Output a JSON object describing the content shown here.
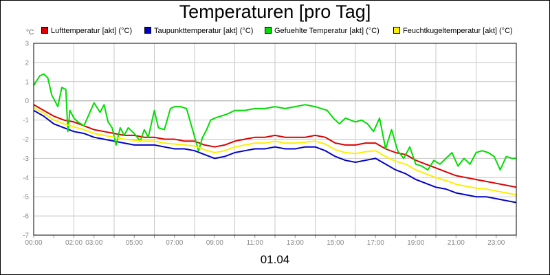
{
  "chart_data": {
    "type": "line",
    "title": "Temperaturen [pro Tag]",
    "unit_label": "°C",
    "xlabel": "01.04",
    "ylim": [
      -7,
      3
    ],
    "y_ticks": [
      "3",
      "2",
      "1",
      "0",
      "-1",
      "-2",
      "-3",
      "-4",
      "-5",
      "-6",
      "-7"
    ],
    "x_range_hours": [
      0,
      24
    ],
    "x_ticks": [
      {
        "h": 0,
        "label": "00:00"
      },
      {
        "h": 2,
        "label": "02:00"
      },
      {
        "h": 3,
        "label": "03:00"
      },
      {
        "h": 5,
        "label": "05:00"
      },
      {
        "h": 7,
        "label": "07:00"
      },
      {
        "h": 9,
        "label": "09:00"
      },
      {
        "h": 11,
        "label": "11:00"
      },
      {
        "h": 13,
        "label": "13:00"
      },
      {
        "h": 15,
        "label": "15:00"
      },
      {
        "h": 17,
        "label": "17:00"
      },
      {
        "h": 19,
        "label": "19:00"
      },
      {
        "h": 21,
        "label": "21:00"
      },
      {
        "h": 23,
        "label": "23:00"
      }
    ],
    "grid": true,
    "legend_position": "top",
    "series": [
      {
        "name": "Lufttemperatur [akt] (°C)",
        "color": "#dd0000",
        "x": [
          0,
          0.5,
          1,
          1.5,
          2,
          2.5,
          3,
          3.5,
          4,
          4.5,
          5,
          5.5,
          6,
          6.5,
          7,
          7.5,
          8,
          8.5,
          9,
          9.5,
          10,
          10.5,
          11,
          11.5,
          12,
          12.5,
          13,
          13.5,
          14,
          14.5,
          15,
          15.5,
          16,
          16.5,
          17,
          17.5,
          18,
          18.5,
          19,
          19.5,
          20,
          20.5,
          21,
          21.5,
          22,
          22.5,
          23,
          23.5,
          24
        ],
        "y": [
          -0.2,
          -0.5,
          -0.8,
          -1.0,
          -1.1,
          -1.3,
          -1.5,
          -1.6,
          -1.7,
          -1.8,
          -1.8,
          -1.9,
          -1.9,
          -2.0,
          -2.0,
          -2.1,
          -2.1,
          -2.3,
          -2.4,
          -2.3,
          -2.1,
          -2.0,
          -1.9,
          -1.9,
          -1.8,
          -1.9,
          -1.9,
          -1.9,
          -1.8,
          -1.9,
          -2.2,
          -2.3,
          -2.3,
          -2.2,
          -2.2,
          -2.5,
          -2.7,
          -2.8,
          -3.1,
          -3.3,
          -3.5,
          -3.7,
          -3.9,
          -4.0,
          -4.1,
          -4.2,
          -4.3,
          -4.4,
          -4.5
        ]
      },
      {
        "name": "Taupunkttemperatur [akt] (°C)",
        "color": "#0000cc",
        "x": [
          0,
          0.5,
          1,
          1.5,
          2,
          2.5,
          3,
          3.5,
          4,
          4.5,
          5,
          5.5,
          6,
          6.5,
          7,
          7.5,
          8,
          8.5,
          9,
          9.5,
          10,
          10.5,
          11,
          11.5,
          12,
          12.5,
          13,
          13.5,
          14,
          14.5,
          15,
          15.5,
          16,
          16.5,
          17,
          17.5,
          18,
          18.5,
          19,
          19.5,
          20,
          20.5,
          21,
          21.5,
          22,
          22.5,
          23,
          23.5,
          24
        ],
        "y": [
          -0.5,
          -0.8,
          -1.2,
          -1.4,
          -1.6,
          -1.7,
          -1.9,
          -2.0,
          -2.1,
          -2.2,
          -2.3,
          -2.3,
          -2.3,
          -2.4,
          -2.5,
          -2.5,
          -2.6,
          -2.8,
          -3.0,
          -2.9,
          -2.7,
          -2.6,
          -2.5,
          -2.5,
          -2.4,
          -2.5,
          -2.5,
          -2.4,
          -2.4,
          -2.6,
          -2.9,
          -3.1,
          -3.2,
          -3.1,
          -3.0,
          -3.3,
          -3.6,
          -3.8,
          -4.1,
          -4.3,
          -4.5,
          -4.6,
          -4.8,
          -4.9,
          -5.0,
          -5.0,
          -5.1,
          -5.2,
          -5.3
        ]
      },
      {
        "name": "Gefuehlte Temperatur [akt] (°C)",
        "color": "#00dd00",
        "x": [
          0,
          0.3,
          0.5,
          0.7,
          0.9,
          1.0,
          1.2,
          1.4,
          1.6,
          1.7,
          1.8,
          2.0,
          2.2,
          2.5,
          3.0,
          3.3,
          3.5,
          3.7,
          3.9,
          4.1,
          4.3,
          4.5,
          4.7,
          5.0,
          5.3,
          5.5,
          5.7,
          6.0,
          6.2,
          6.5,
          6.8,
          7.0,
          7.3,
          7.6,
          7.9,
          8.2,
          8.4,
          8.6,
          8.8,
          9.0,
          9.3,
          9.6,
          10.0,
          10.5,
          11.0,
          11.5,
          12.0,
          12.5,
          13.0,
          13.5,
          14.0,
          14.3,
          14.6,
          14.9,
          15.2,
          15.5,
          16.0,
          16.3,
          16.6,
          16.9,
          17.2,
          17.5,
          17.8,
          18.1,
          18.4,
          18.7,
          19.0,
          19.3,
          19.6,
          19.9,
          20.2,
          20.5,
          20.8,
          21.1,
          21.4,
          21.7,
          22.0,
          22.3,
          22.6,
          22.9,
          23.2,
          23.5,
          23.8,
          24.0
        ],
        "y": [
          0.8,
          1.3,
          1.4,
          1.2,
          0.3,
          0.1,
          -0.3,
          0.7,
          0.6,
          -1.6,
          -0.5,
          -0.9,
          -1.1,
          -1.3,
          -0.1,
          -0.6,
          -0.2,
          -1.1,
          -1.4,
          -2.3,
          -1.4,
          -1.8,
          -1.4,
          -1.7,
          -2.1,
          -1.5,
          -1.9,
          -0.5,
          -1.4,
          -1.5,
          -0.4,
          -0.3,
          -0.3,
          -0.4,
          -1.5,
          -2.6,
          -1.9,
          -1.5,
          -1.0,
          -0.9,
          -0.8,
          -0.7,
          -0.5,
          -0.5,
          -0.4,
          -0.4,
          -0.3,
          -0.4,
          -0.3,
          -0.2,
          -0.3,
          -0.4,
          -0.5,
          -0.9,
          -1.2,
          -0.9,
          -1.1,
          -1.0,
          -1.2,
          -1.6,
          -0.9,
          -2.5,
          -1.5,
          -2.6,
          -3.0,
          -2.4,
          -3.3,
          -3.4,
          -3.6,
          -3.1,
          -3.3,
          -3.0,
          -2.7,
          -3.4,
          -3.0,
          -3.3,
          -2.7,
          -2.6,
          -2.7,
          -2.9,
          -3.6,
          -2.9,
          -3.0,
          -3.0
        ]
      },
      {
        "name": "Feuchtkugeltemperatur [akt] (°C)",
        "color": "#ffee00",
        "x": [
          0,
          0.5,
          1,
          1.5,
          2,
          2.5,
          3,
          3.5,
          4,
          4.5,
          5,
          5.5,
          6,
          6.5,
          7,
          7.5,
          8,
          8.5,
          9,
          9.5,
          10,
          10.5,
          11,
          11.5,
          12,
          12.5,
          13,
          13.5,
          14,
          14.5,
          15,
          15.5,
          16,
          16.5,
          17,
          17.5,
          18,
          18.5,
          19,
          19.5,
          20,
          20.5,
          21,
          21.5,
          22,
          22.5,
          23,
          23.5,
          24
        ],
        "y": [
          -0.35,
          -0.65,
          -1.0,
          -1.2,
          -1.35,
          -1.5,
          -1.7,
          -1.8,
          -1.9,
          -2.0,
          -2.05,
          -2.1,
          -2.1,
          -2.2,
          -2.25,
          -2.3,
          -2.35,
          -2.55,
          -2.7,
          -2.6,
          -2.4,
          -2.3,
          -2.2,
          -2.2,
          -2.1,
          -2.2,
          -2.2,
          -2.15,
          -2.1,
          -2.25,
          -2.55,
          -2.7,
          -2.75,
          -2.65,
          -2.6,
          -2.9,
          -3.15,
          -3.3,
          -3.6,
          -3.8,
          -4.0,
          -4.15,
          -4.35,
          -4.45,
          -4.55,
          -4.6,
          -4.7,
          -4.8,
          -4.9
        ]
      }
    ]
  }
}
